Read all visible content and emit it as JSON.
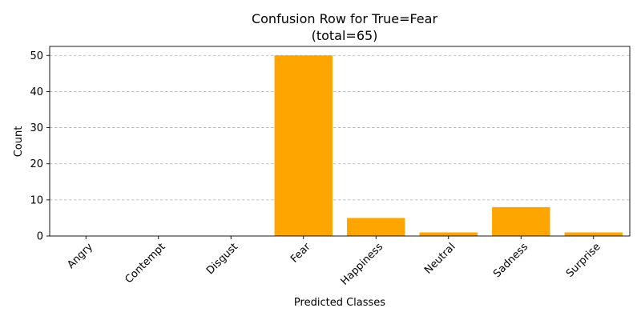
{
  "chart_data": {
    "type": "bar",
    "title": "Confusion Row for True=Fear",
    "subtitle": "(total=65)",
    "xlabel": "Predicted Classes",
    "ylabel": "Count",
    "categories": [
      "Angry",
      "Contempt",
      "Disgust",
      "Fear",
      "Happiness",
      "Neutral",
      "Sadness",
      "Surprise"
    ],
    "values": [
      0,
      0,
      0,
      50,
      5,
      1,
      8,
      1
    ],
    "ylim": [
      0,
      52.5
    ],
    "yticks": [
      0,
      10,
      20,
      30,
      40,
      50
    ],
    "grid": "y-dashed",
    "bar_color": "#FFA500"
  }
}
